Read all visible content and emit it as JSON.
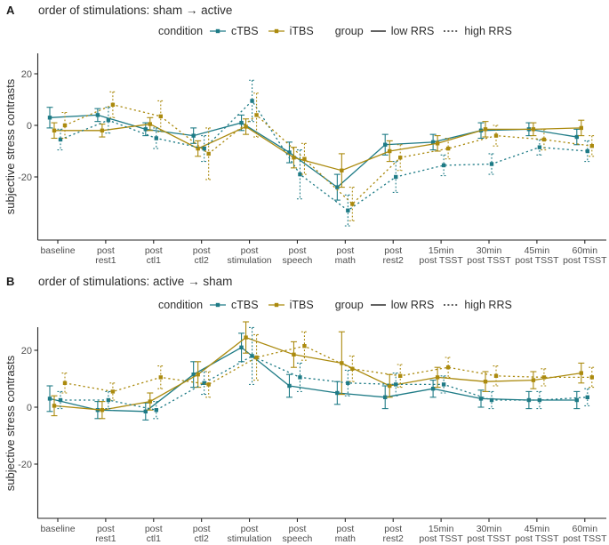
{
  "legend": {
    "condition_label": "condition",
    "ctbs_label": "cTBS",
    "itbs_label": "iTBS",
    "group_label": "group",
    "low_rrs_label": "low RRS",
    "high_rrs_label": "high RRS"
  },
  "colors": {
    "ctbs": "#1e7b86",
    "itbs": "#ab8a0e",
    "axis": "#262626",
    "tick_label": "#4f4f4f"
  },
  "chart_data": [
    {
      "type": "line",
      "panel_label": "A",
      "title": "order of stimulations: sham → active",
      "ylabel": "subjective stress contrasts",
      "yticks": [
        20,
        0,
        -20
      ],
      "ylim": [
        -45,
        28
      ],
      "grid": false,
      "legend_position": "top",
      "error_bars": true,
      "categories": [
        "baseline",
        "post rest1",
        "post ctl1",
        "post ctl2",
        "post stimulation",
        "post speech",
        "post math",
        "post rest2",
        "15min post TSST",
        "30min post TSST",
        "45min post TSST",
        "60min post TSST"
      ],
      "tick_lines": [
        [
          "baseline"
        ],
        [
          "post",
          "rest1"
        ],
        [
          "post",
          "ctl1"
        ],
        [
          "post",
          "ctl2"
        ],
        [
          "post",
          "stimulation"
        ],
        [
          "post",
          "speech"
        ],
        [
          "post",
          "math"
        ],
        [
          "post",
          "rest2"
        ],
        [
          "15min",
          "post TSST"
        ],
        [
          "30min",
          "post TSST"
        ],
        [
          "45min",
          "post TSST"
        ],
        [
          "60min",
          "post TSST"
        ]
      ],
      "series": [
        {
          "name": "cTBS low RRS",
          "condition": "cTBS",
          "group": "low RRS",
          "line": "solid",
          "color": "#1e7b86",
          "values": [
            3,
            4,
            -1.5,
            -4,
            1,
            -10.5,
            -24,
            -7.5,
            -6.5,
            -2,
            -1.5,
            -4.5
          ],
          "errors": [
            4,
            2.5,
            2.5,
            3,
            3,
            4,
            5,
            4,
            3,
            3,
            2.5,
            3
          ]
        },
        {
          "name": "iTBS low RRS",
          "condition": "iTBS",
          "group": "low RRS",
          "line": "solid",
          "color": "#ab8a0e",
          "values": [
            -2,
            -2,
            0.5,
            -9,
            -0.5,
            -12.5,
            -17.5,
            -10,
            -7,
            -1.5,
            -1.5,
            -1
          ],
          "errors": [
            3,
            2.5,
            2.5,
            3,
            3,
            4,
            6.5,
            4,
            3,
            3,
            2.5,
            3
          ]
        },
        {
          "name": "cTBS high RRS",
          "condition": "cTBS",
          "group": "high RRS",
          "line": "dotted",
          "color": "#1e7b86",
          "values": [
            -5.5,
            2,
            -5,
            -9,
            9.5,
            -19,
            -33,
            -20,
            -15.5,
            -15,
            -8.5,
            -10
          ],
          "errors": [
            4,
            5,
            4,
            5,
            8,
            9.5,
            6,
            6,
            4,
            4,
            3,
            4
          ]
        },
        {
          "name": "iTBS high RRS",
          "condition": "iTBS",
          "group": "high RRS",
          "line": "dotted",
          "color": "#ab8a0e",
          "values": [
            0,
            8,
            3.5,
            -11,
            4,
            -13,
            -30.5,
            -12.5,
            -9,
            -4,
            -5.5,
            -8
          ],
          "errors": [
            5,
            5,
            6,
            10,
            8.5,
            6,
            6.5,
            5,
            4,
            4,
            4,
            4
          ]
        }
      ]
    },
    {
      "type": "line",
      "panel_label": "B",
      "title": "order of stimulations: active → sham",
      "ylabel": "subjective stress contrasts",
      "yticks": [
        20,
        0,
        -20
      ],
      "ylim": [
        -39,
        28
      ],
      "grid": false,
      "legend_position": "top",
      "error_bars": true,
      "categories": [
        "baseline",
        "post rest1",
        "post ctl1",
        "post ctl2",
        "post stimulation",
        "post speech",
        "post math",
        "post rest2",
        "15min post TSST",
        "30min post TSST",
        "45min post TSST",
        "60min post TSST"
      ],
      "tick_lines": [
        [
          "baseline"
        ],
        [
          "post",
          "rest1"
        ],
        [
          "post",
          "ctl1"
        ],
        [
          "post",
          "ctl2"
        ],
        [
          "post",
          "stimulation"
        ],
        [
          "post",
          "speech"
        ],
        [
          "post",
          "math"
        ],
        [
          "post",
          "rest2"
        ],
        [
          "15min",
          "post TSST"
        ],
        [
          "30min",
          "post TSST"
        ],
        [
          "45min",
          "post TSST"
        ],
        [
          "60min",
          "post TSST"
        ]
      ],
      "series": [
        {
          "name": "cTBS low RRS",
          "condition": "cTBS",
          "group": "low RRS",
          "line": "solid",
          "color": "#1e7b86",
          "values": [
            3,
            -1,
            -1.5,
            11.5,
            21,
            7.5,
            5,
            3.5,
            6.5,
            3,
            2.5,
            2.5
          ],
          "errors": [
            4.5,
            3,
            3,
            4.5,
            5,
            4,
            4,
            4,
            3,
            3,
            3,
            3
          ]
        },
        {
          "name": "iTBS low RRS",
          "condition": "iTBS",
          "group": "low RRS",
          "line": "solid",
          "color": "#ab8a0e",
          "values": [
            0.5,
            -1,
            2,
            11.5,
            24.5,
            18.5,
            15.5,
            7.5,
            10.5,
            9,
            9.5,
            12
          ],
          "errors": [
            3.5,
            3,
            3,
            4.5,
            5.5,
            4.5,
            11,
            4,
            3.5,
            3.5,
            3,
            3.5
          ]
        },
        {
          "name": "cTBS high RRS",
          "condition": "cTBS",
          "group": "high RRS",
          "line": "dotted",
          "color": "#1e7b86",
          "values": [
            2.5,
            2.5,
            -1,
            8.5,
            18,
            10.5,
            8.5,
            8,
            8,
            2.5,
            2.5,
            3.5
          ],
          "errors": [
            3,
            3,
            3,
            4,
            10,
            5,
            4.5,
            4,
            3,
            3,
            3,
            3
          ]
        },
        {
          "name": "iTBS high RRS",
          "condition": "iTBS",
          "group": "high RRS",
          "line": "dotted",
          "color": "#ab8a0e",
          "values": [
            8.5,
            5.5,
            10.5,
            8,
            17.5,
            21.5,
            13.5,
            11,
            14,
            11,
            10.5,
            10.5
          ],
          "errors": [
            3.5,
            3,
            4,
            4.5,
            8,
            5,
            4.5,
            4,
            3.5,
            3.5,
            3,
            3.5
          ]
        }
      ]
    }
  ]
}
